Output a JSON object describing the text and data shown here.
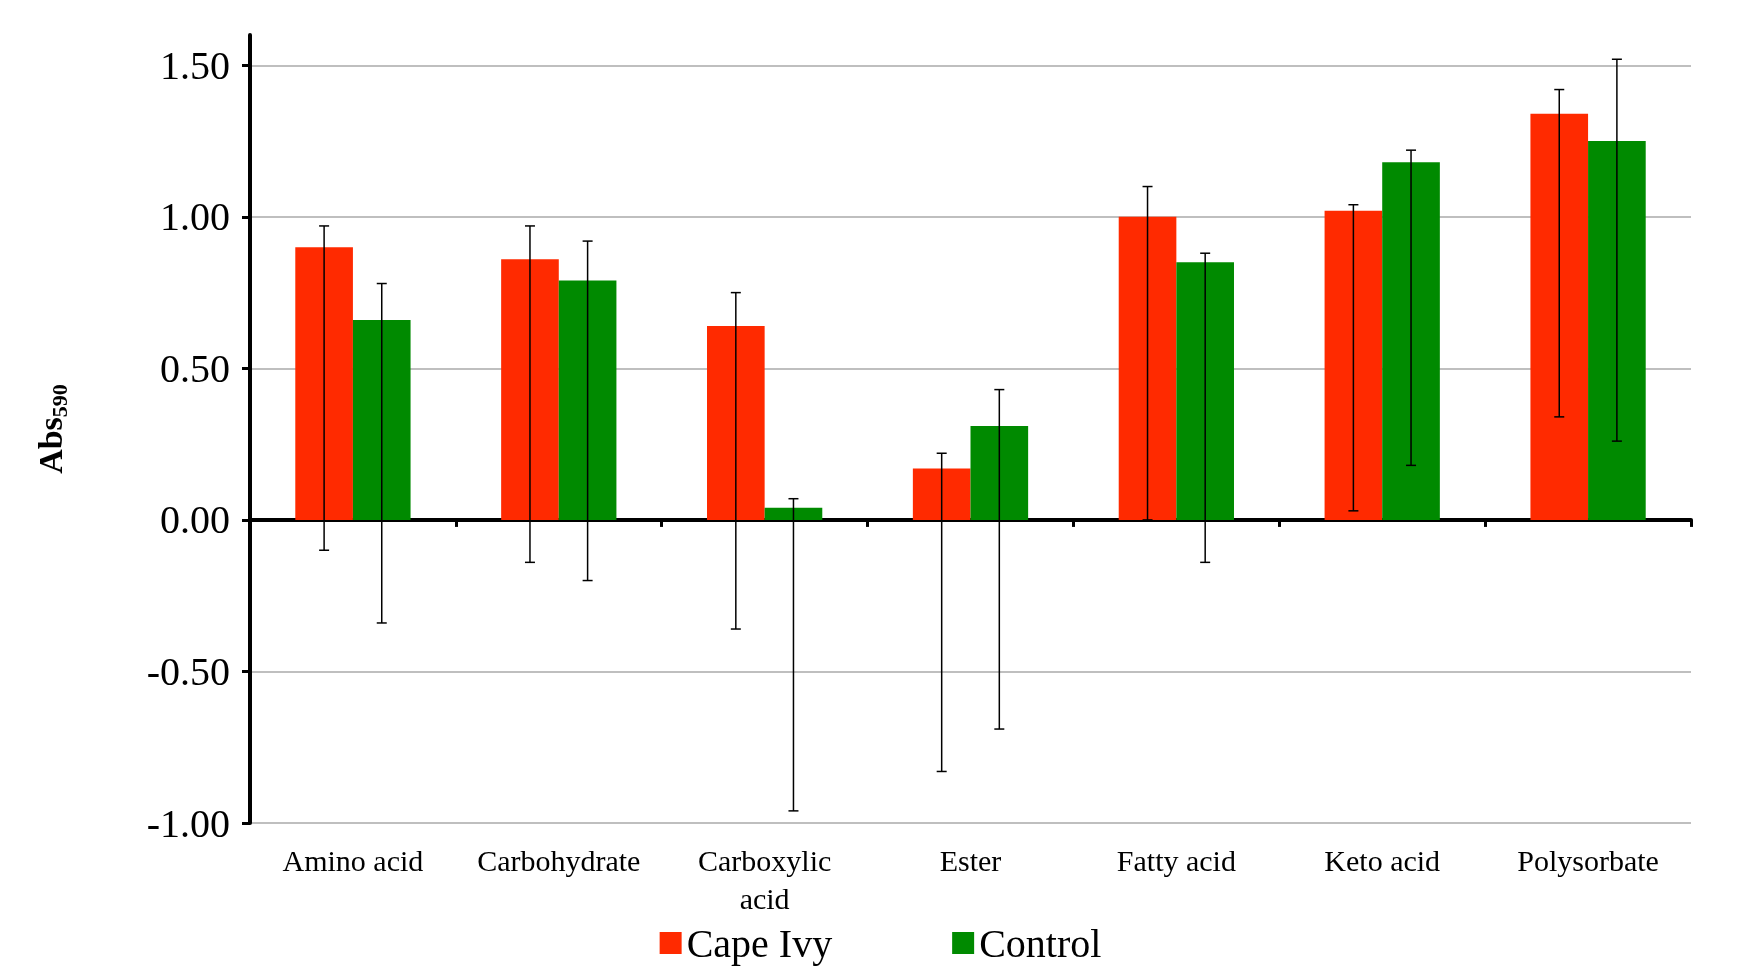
{
  "chart_data": {
    "type": "bar",
    "ylabel": "Abs$_{590}$",
    "categories": [
      "Amino acid",
      "Carbohydrate",
      "Carboxylic\nacid",
      "Ester",
      "Fatty acid",
      "Keto acid",
      "Polysorbate"
    ],
    "series": [
      {
        "name": "Cape Ivy",
        "color": "#ff2a00",
        "values": [
          0.9,
          0.86,
          0.64,
          0.17,
          1.0,
          1.02,
          1.34
        ],
        "errors": [
          [
            -0.1,
            0.97
          ],
          [
            -0.14,
            0.97
          ],
          [
            -0.36,
            0.75
          ],
          [
            -0.83,
            0.22
          ],
          [
            0.0,
            1.1
          ],
          [
            0.03,
            1.04
          ],
          [
            0.34,
            1.42
          ]
        ]
      },
      {
        "name": "Control",
        "color": "#008a00",
        "values": [
          0.66,
          0.79,
          0.04,
          0.31,
          0.85,
          1.18,
          1.25
        ],
        "errors": [
          [
            -0.34,
            0.78
          ],
          [
            -0.2,
            0.92
          ],
          [
            -0.96,
            0.07
          ],
          [
            -0.69,
            0.43
          ],
          [
            -0.14,
            0.88
          ],
          [
            0.18,
            1.22
          ],
          [
            0.26,
            1.52
          ]
        ]
      }
    ],
    "ylim": [
      -1.0,
      1.6
    ],
    "yticks": [
      {
        "value": -1,
        "label": "-1.00"
      },
      {
        "value": -0.5,
        "label": "-0.50"
      },
      {
        "value": 0,
        "label": "0.00"
      },
      {
        "value": 0.5,
        "label": "0.50"
      },
      {
        "value": 1,
        "label": "1.00"
      },
      {
        "value": 1.5,
        "label": "1.50"
      }
    ],
    "grid": "y",
    "legend": "bottom"
  }
}
